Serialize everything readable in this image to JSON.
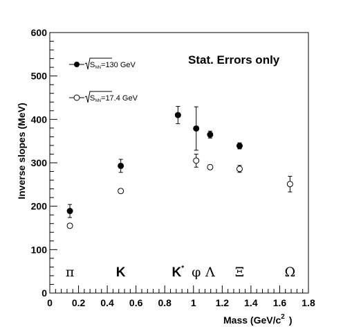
{
  "chart_data": {
    "type": "scatter",
    "xlabel": "Mass (GeV/c",
    "xlabel_sup": "2",
    "xlabel_end": ")",
    "ylabel": "Inverse slopes (MeV)",
    "xlim": [
      0,
      1.8
    ],
    "ylim": [
      0,
      600
    ],
    "xticks": [
      "0",
      "0.2",
      "0.4",
      "0.6",
      "0.8",
      "1",
      "1.2",
      "1.4",
      "1.6",
      "1.8"
    ],
    "yticks": [
      "0",
      "100",
      "200",
      "300",
      "400",
      "500",
      "600"
    ],
    "annotation": "Stat. Errors only",
    "series": [
      {
        "name_base": "S",
        "name_sub": "NN",
        "name_value": "=130 GeV",
        "marker": "filled",
        "points": [
          {
            "x": 0.14,
            "y": 189,
            "err": 15
          },
          {
            "x": 0.494,
            "y": 293,
            "err": 15
          },
          {
            "x": 0.892,
            "y": 410,
            "err": 20
          },
          {
            "x": 1.019,
            "y": 379,
            "err": 50
          },
          {
            "x": 1.116,
            "y": 365,
            "err": 8
          },
          {
            "x": 1.321,
            "y": 339,
            "err": 7
          }
        ]
      },
      {
        "name_base": "S",
        "name_sub": "NN",
        "name_value": "=17.4 GeV",
        "marker": "open",
        "points": [
          {
            "x": 0.14,
            "y": 155,
            "err": 5
          },
          {
            "x": 0.494,
            "y": 235,
            "err": 5
          },
          {
            "x": 1.019,
            "y": 305,
            "err": 15
          },
          {
            "x": 1.116,
            "y": 290,
            "err": 5
          },
          {
            "x": 1.321,
            "y": 286,
            "err": 8
          },
          {
            "x": 1.672,
            "y": 251,
            "err": 18
          }
        ]
      }
    ],
    "particles": [
      {
        "label": "π",
        "x": 0.14,
        "style": "greek"
      },
      {
        "label": "K",
        "x": 0.494,
        "style": "latin"
      },
      {
        "label": "K",
        "sup": "*",
        "x": 0.892,
        "style": "latin"
      },
      {
        "label": "φ",
        "x": 1.019,
        "style": "greek"
      },
      {
        "label": "Λ",
        "x": 1.116,
        "style": "greek"
      },
      {
        "label": "Ξ",
        "x": 1.321,
        "style": "greek"
      },
      {
        "label": "Ω",
        "x": 1.672,
        "style": "greek"
      }
    ]
  }
}
